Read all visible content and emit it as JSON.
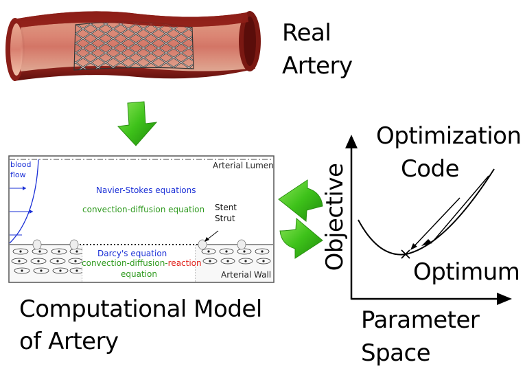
{
  "labels": {
    "real_artery": [
      "Real",
      "Artery"
    ],
    "computational_model": [
      "Computational Model",
      "of Artery"
    ],
    "optimization_code": [
      "Optimization",
      "Code"
    ],
    "objective": "Objective",
    "parameter_space": [
      "Parameter",
      "Space"
    ],
    "optimum": "Optimum"
  },
  "model": {
    "arterial_lumen": "Arterial Lumen",
    "arterial_wall": "Arterial Wall",
    "blood_flow": [
      "blood",
      "flow"
    ],
    "navier_stokes": "Navier-Stokes equations",
    "convection_diffusion": "convection-diffusion equation",
    "stent_strut": [
      "Stent",
      "Strut"
    ],
    "darcy": "Darcy's equation",
    "cdr_prefix": "convection-diffusion-",
    "cdr_reaction": "reaction",
    "equation": "equation"
  },
  "colors": {
    "green_arrow": "#3ec21a",
    "blue_text": "#1a2fd6",
    "green_text": "#2f9a1f",
    "red_text": "#e0201a",
    "artery_red": "#b8322a"
  }
}
